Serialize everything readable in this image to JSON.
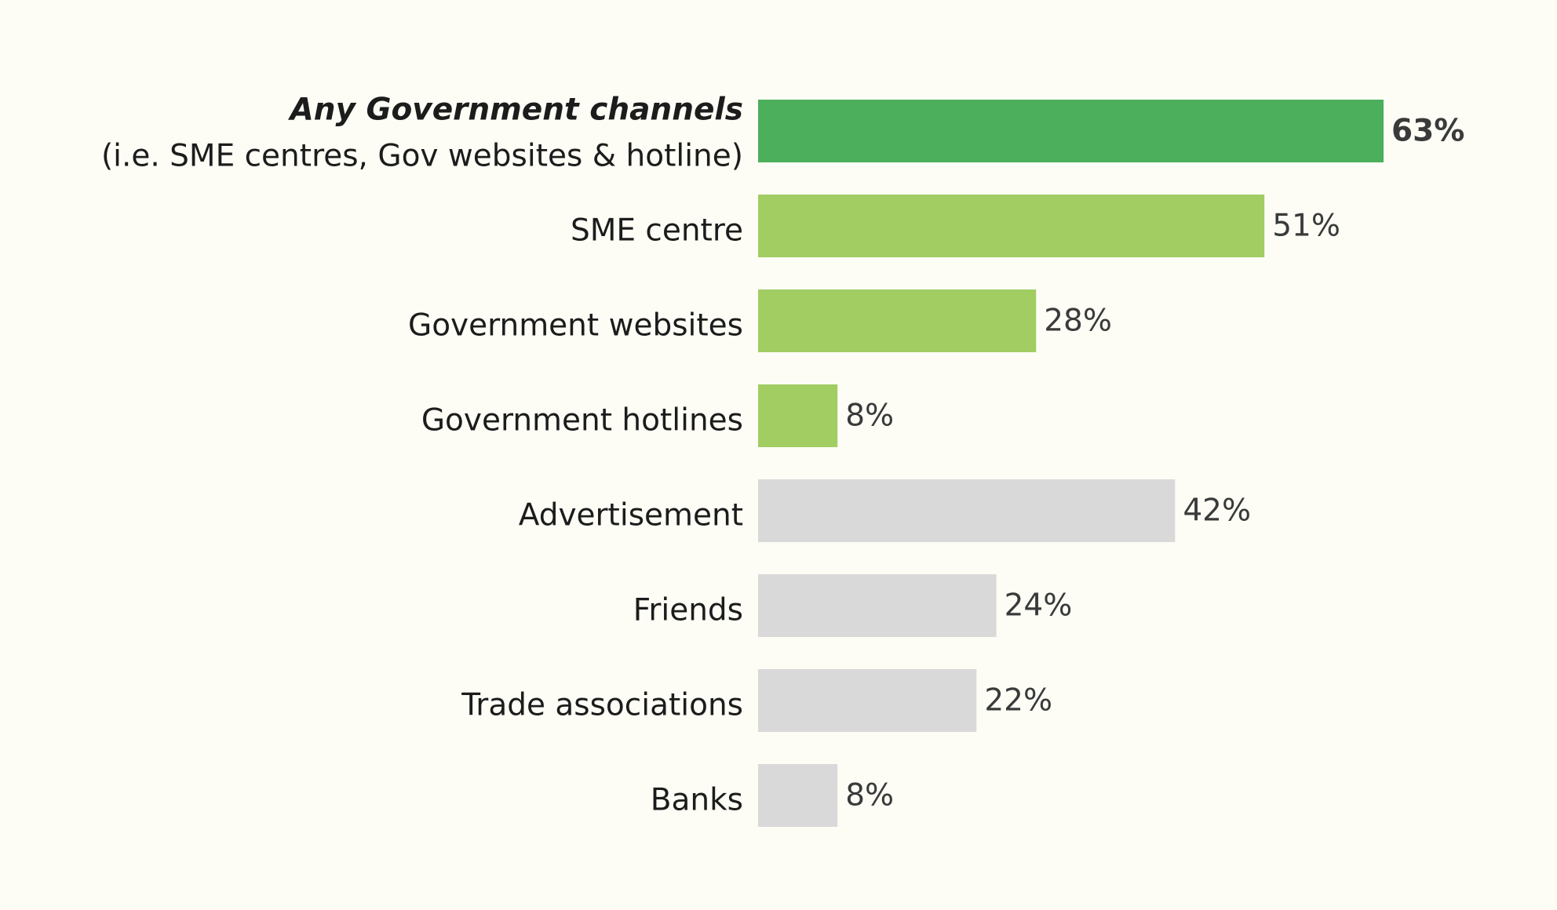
{
  "chart_data": {
    "type": "bar",
    "orientation": "horizontal",
    "title": "",
    "xlabel": "",
    "ylabel": "",
    "xlim": [
      0,
      63
    ],
    "grid": false,
    "legend": "none",
    "value_suffix": "%",
    "colors": {
      "highlight": "#4caf5c",
      "government": "#a1cd63",
      "other": "#d9d9d9",
      "background": "#fdfdf6"
    },
    "categories": [
      {
        "label": "Any Government channels",
        "sublabel": "(i.e. SME centres, Gov websites & hotline)",
        "value": 63,
        "value_label": "63%",
        "group": "highlight"
      },
      {
        "label": "SME centre",
        "value": 51,
        "value_label": "51%",
        "group": "government"
      },
      {
        "label": "Government websites",
        "value": 28,
        "value_label": "28%",
        "group": "government"
      },
      {
        "label": "Government hotlines",
        "value": 8,
        "value_label": "8%",
        "group": "government"
      },
      {
        "label": "Advertisement",
        "value": 42,
        "value_label": "42%",
        "group": "other"
      },
      {
        "label": "Friends",
        "value": 24,
        "value_label": "24%",
        "group": "other"
      },
      {
        "label": "Trade associations",
        "value": 22,
        "value_label": "22%",
        "group": "other"
      },
      {
        "label": "Banks",
        "value": 8,
        "value_label": "8%",
        "group": "other"
      }
    ]
  }
}
